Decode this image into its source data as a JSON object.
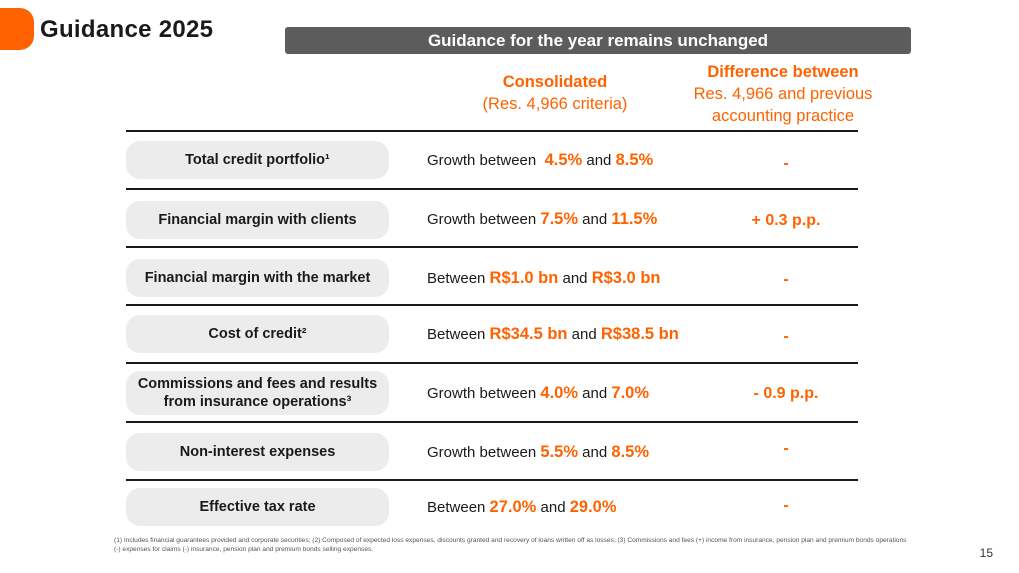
{
  "header": {
    "title": "Guidance 2025",
    "banner": "Guidance for the year remains unchanged"
  },
  "columns": {
    "consolidated_title": "Consolidated",
    "consolidated_sub": "(Res. 4,966 criteria)",
    "difference_title": "Difference between",
    "difference_sub1": "Res. 4,966 and previous",
    "difference_sub2": "accounting practice"
  },
  "rows": [
    {
      "label": "Total credit portfolio¹",
      "prefix": "Growth between ",
      "v1": "4.5%",
      "mid": " and ",
      "v2": "8.5%",
      "diff": "-"
    },
    {
      "label": "Financial margin with clients",
      "prefix": "Growth between ",
      "v1": "7.5%",
      "mid": " and ",
      "v2": "11.5%",
      "diff": "+ 0.3 p.p."
    },
    {
      "label": "Financial margin with the market",
      "prefix": "Between ",
      "v1": "R$1.0 bn",
      "mid": " and ",
      "v2": "R$3.0 bn",
      "diff": "-"
    },
    {
      "label": "Cost of credit²",
      "prefix": "Between ",
      "v1": "R$34.5 bn",
      "mid": " and ",
      "v2": "R$38.5 bn",
      "diff": "-"
    },
    {
      "label_line1": "Commissions and fees and results",
      "label_line2": "from insurance operations³",
      "prefix": "Growth between ",
      "v1": "4.0%",
      "mid": " and ",
      "v2": "7.0%",
      "diff": "- 0.9 p.p."
    },
    {
      "label": "Non-interest expenses",
      "prefix": "Growth between ",
      "v1": "5.5%",
      "mid": " and ",
      "v2": "8.5%",
      "diff": "-"
    },
    {
      "label": "Effective tax rate",
      "prefix": "Between ",
      "v1": "27.0%",
      "mid": " and ",
      "v2": "29.0%",
      "diff": "-"
    }
  ],
  "footnote": "(1) Includes financial guarantees provided and corporate securities; (2) Composed of expected loss expenses, discounts granted and recovery of loans written off as losses; (3) Commissions and fees (+) income from insurance, pension plan and premium bonds operations (-) expenses for claims (-) insurance, pension plan and premium bonds selling expenses.",
  "page_number": "15",
  "colors": {
    "accent": "#ff6200",
    "banner": "#5c5c5c",
    "pill": "#ececec"
  }
}
